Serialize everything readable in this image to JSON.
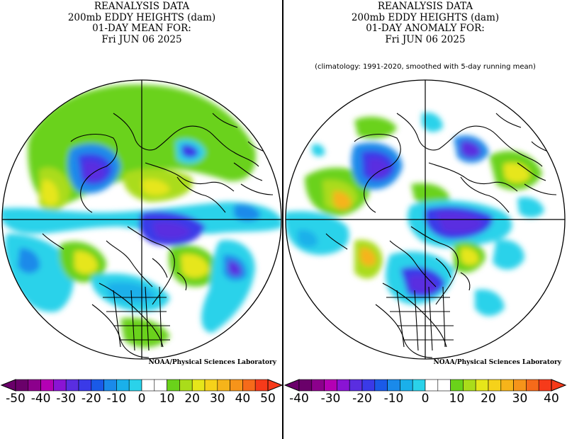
{
  "panels": [
    {
      "title_lines": [
        "REANALYSIS DATA",
        "200mb EDDY HEIGHTS (dam)",
        "01-DAY MEAN FOR:",
        "Fri JUN 06 2025"
      ],
      "subtitle": "",
      "credit": "NOAA/Physical Sciences Laboratory",
      "colorbar": {
        "colors": [
          "#6a006a",
          "#8c008c",
          "#b400b4",
          "#8a14d4",
          "#5a2ee0",
          "#3a3ae8",
          "#1a5ae8",
          "#1a8aea",
          "#1ab0ea",
          "#2ad2ea",
          "#ffffff",
          "#ffffff",
          "#6ad21a",
          "#aadc1a",
          "#e6e61a",
          "#f6d21a",
          "#f6b41a",
          "#f6941a",
          "#f66a1a",
          "#f63a1a"
        ],
        "tick_labels": [
          "-50",
          "-40",
          "-30",
          "-20",
          "-10",
          "0",
          "10",
          "20",
          "30",
          "40",
          "50"
        ]
      },
      "map_features": [
        "polar-stereographic-projection",
        "continent-outlines",
        "meridian-crosshair"
      ]
    },
    {
      "title_lines": [
        "REANALYSIS DATA",
        "200mb EDDY HEIGHTS (dam)",
        "01-DAY ANOMALY FOR:",
        "Fri JUN 06 2025"
      ],
      "subtitle": "(climatology: 1991-2020, smoothed with 5-day running mean)",
      "credit": "NOAA/Physical Sciences Laboratory",
      "colorbar": {
        "colors": [
          "#6a006a",
          "#8c008c",
          "#b400b4",
          "#8a14d4",
          "#5a2ee0",
          "#3a3ae8",
          "#1a5ae8",
          "#1a8aea",
          "#1ab0ea",
          "#2ad2ea",
          "#ffffff",
          "#ffffff",
          "#6ad21a",
          "#aadc1a",
          "#e6e61a",
          "#f6d21a",
          "#f6b41a",
          "#f6941a",
          "#f66a1a",
          "#f63a1a"
        ],
        "tick_labels": [
          "-40",
          "-30",
          "-20",
          "-10",
          "0",
          "10",
          "20",
          "30",
          "40"
        ]
      },
      "map_features": [
        "polar-stereographic-projection",
        "continent-outlines",
        "meridian-crosshair"
      ]
    }
  ]
}
